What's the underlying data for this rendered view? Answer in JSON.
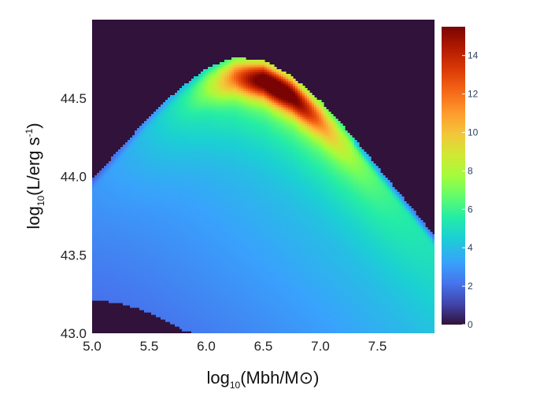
{
  "chart_data": {
    "type": "heatmap",
    "title": "",
    "xlabel": "log10(Mbh/M⊙)",
    "ylabel": "log10(L/erg s-1)",
    "xlabel_parts": {
      "prefix": "log",
      "sub": "10",
      "rest": "(Mbh/M⊙)"
    },
    "ylabel_parts": {
      "prefix": "log",
      "sub": "10",
      "mid": "(L/erg s",
      "sup": "-1",
      "suffix": ")"
    },
    "xlim": [
      5.0,
      8.0
    ],
    "ylim": [
      43.0,
      45.0
    ],
    "x_ticks": [
      "5.0",
      "5.5",
      "6.0",
      "6.5",
      "7.0",
      "7.5"
    ],
    "y_ticks": [
      "43.0",
      "43.5",
      "44.0",
      "44.5"
    ],
    "colorbar": {
      "range": [
        0,
        15.5
      ],
      "ticks": [
        "0",
        "2",
        "4",
        "6",
        "8",
        "10",
        "12",
        "14"
      ],
      "colormap": "turbo-like"
    },
    "background_value": 0,
    "upper_boundary": [
      [
        5.0,
        43.98
      ],
      [
        5.25,
        44.18
      ],
      [
        5.5,
        44.38
      ],
      [
        5.75,
        44.55
      ],
      [
        6.0,
        44.69
      ],
      [
        6.25,
        44.76
      ],
      [
        6.5,
        44.74
      ],
      [
        6.75,
        44.64
      ],
      [
        7.0,
        44.48
      ],
      [
        7.25,
        44.28
      ],
      [
        7.5,
        44.06
      ],
      [
        7.75,
        43.84
      ],
      [
        8.0,
        43.62
      ]
    ],
    "lower_boundary": [
      [
        5.0,
        43.21
      ],
      [
        5.2,
        43.2
      ],
      [
        5.4,
        43.16
      ],
      [
        5.6,
        43.1
      ],
      [
        5.8,
        43.02
      ],
      [
        5.9,
        43.0
      ]
    ],
    "peak": {
      "x": 6.6,
      "y": 44.38,
      "value": 15.5
    },
    "grid": false
  }
}
